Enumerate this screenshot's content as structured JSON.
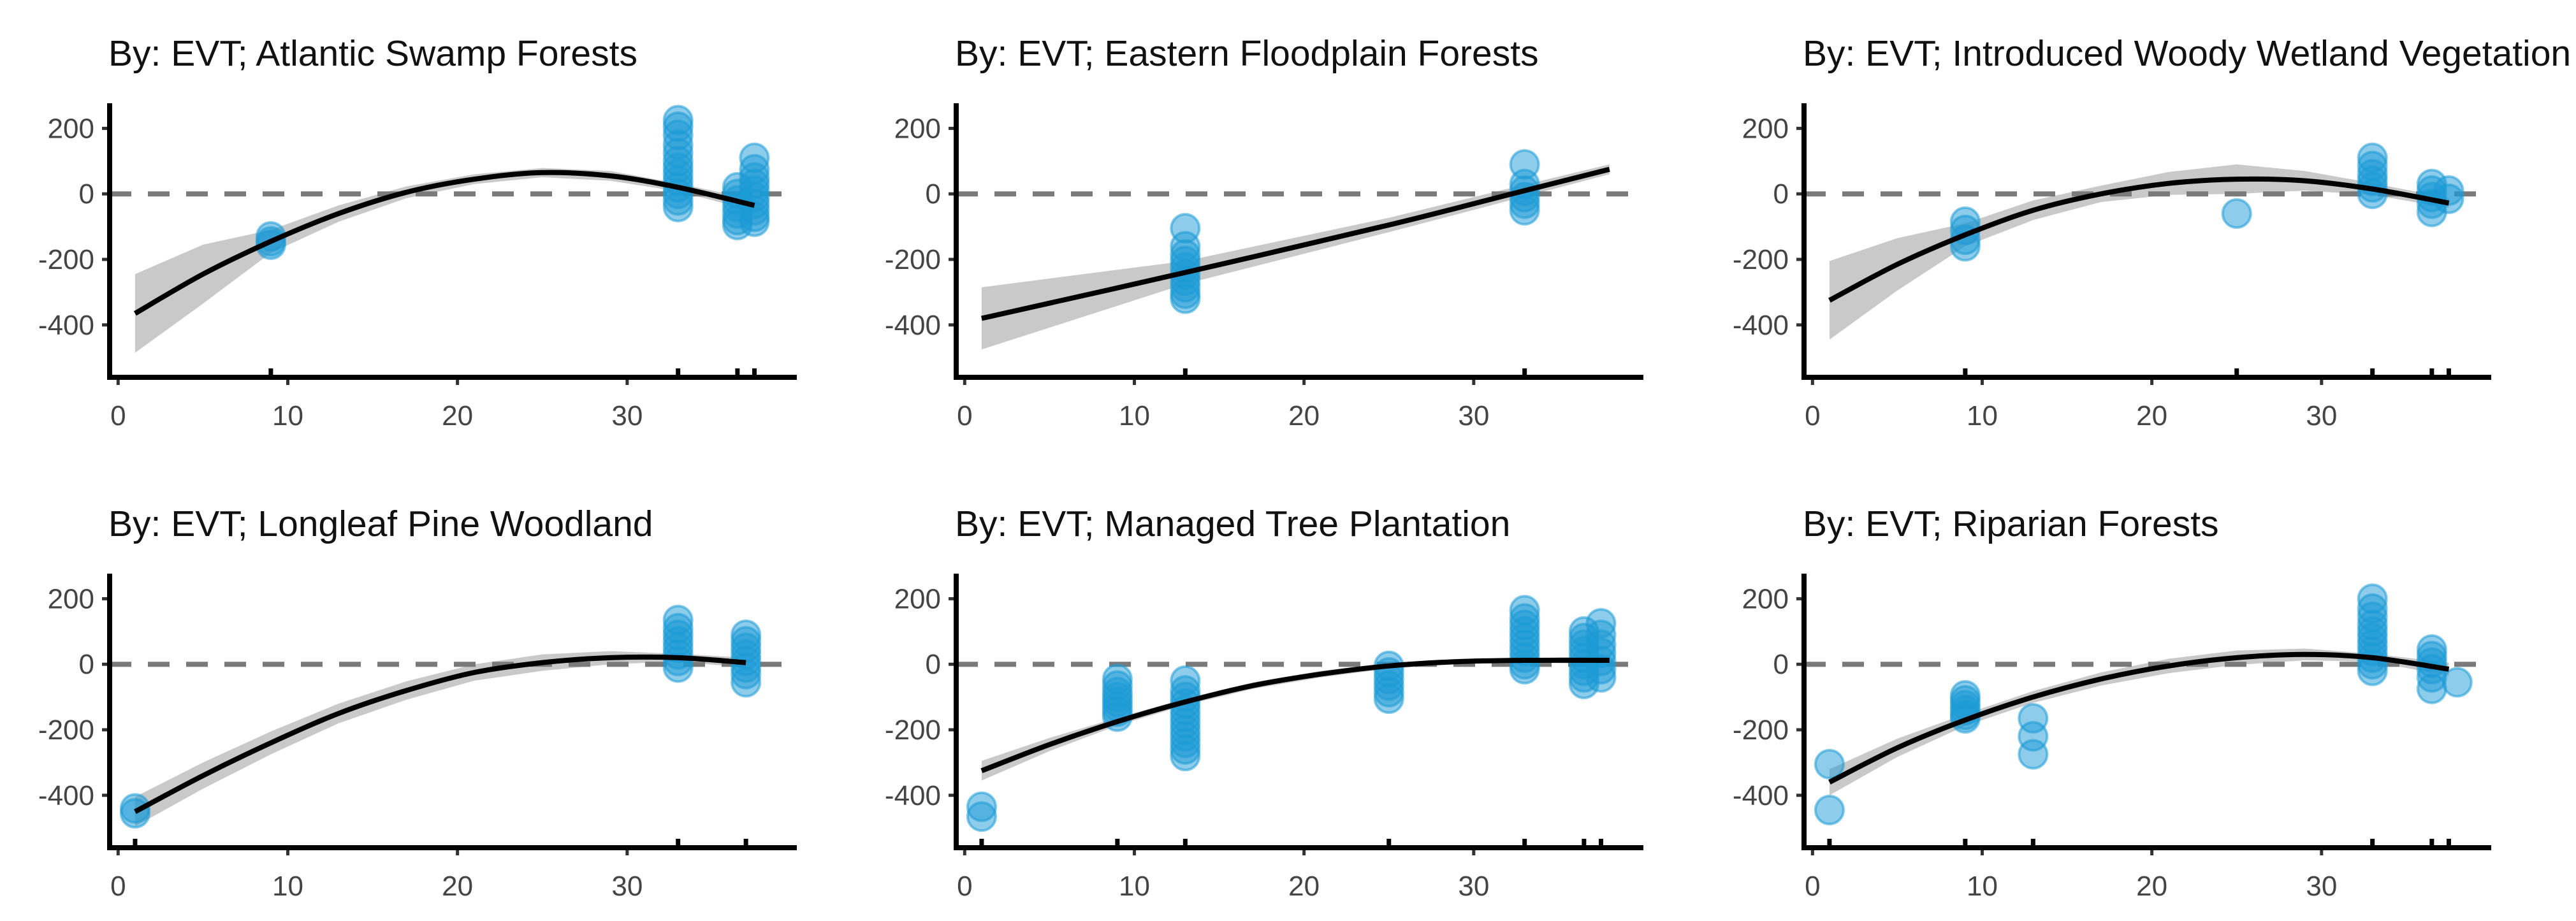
{
  "figure": {
    "point_color": "#1b9ad6",
    "line_color": "#000000",
    "band_color": "#c9c9c9",
    "ref_line_color": "#7a7a7a"
  },
  "chart_data": [
    {
      "type": "scatter",
      "title": "By: EVT; Atlantic Swamp Forests",
      "xlim": [
        -0.5,
        40
      ],
      "ylim": [
        -560,
        265
      ],
      "xticks": [
        0,
        10,
        20,
        30
      ],
      "yticks": [
        200,
        0,
        -200,
        -400
      ],
      "ref_y": 0,
      "points": [
        [
          9,
          -130
        ],
        [
          9,
          -145
        ],
        [
          9,
          -155
        ],
        [
          33,
          225
        ],
        [
          33,
          205
        ],
        [
          33,
          180
        ],
        [
          33,
          150
        ],
        [
          33,
          125
        ],
        [
          33,
          100
        ],
        [
          33,
          80
        ],
        [
          33,
          60
        ],
        [
          33,
          40
        ],
        [
          33,
          20
        ],
        [
          33,
          0
        ],
        [
          33,
          -20
        ],
        [
          33,
          -40
        ],
        [
          36.5,
          20
        ],
        [
          36.5,
          0
        ],
        [
          36.5,
          -20
        ],
        [
          36.5,
          -40
        ],
        [
          36.5,
          -60
        ],
        [
          36.5,
          -80
        ],
        [
          36.5,
          -95
        ],
        [
          37.5,
          110
        ],
        [
          37.5,
          75
        ],
        [
          37.5,
          50
        ],
        [
          37.5,
          30
        ],
        [
          37.5,
          10
        ],
        [
          37.5,
          -10
        ],
        [
          37.5,
          -30
        ],
        [
          37.5,
          -50
        ],
        [
          37.5,
          -70
        ],
        [
          37.5,
          -85
        ]
      ],
      "fit": {
        "x": [
          1,
          5,
          9,
          13,
          17,
          21,
          25,
          29,
          33,
          37.5
        ],
        "y": [
          -365,
          -245,
          -145,
          -60,
          5,
          45,
          65,
          55,
          20,
          -35
        ],
        "ci_halfwidth": [
          120,
          90,
          35,
          25,
          18,
          15,
          14,
          15,
          12,
          18
        ]
      },
      "rug": [
        9,
        33,
        36.5,
        37.5
      ]
    },
    {
      "type": "scatter",
      "title": "By: EVT; Eastern Floodplain Forests",
      "xlim": [
        -0.5,
        40
      ],
      "ylim": [
        -560,
        265
      ],
      "xticks": [
        0,
        10,
        20,
        30
      ],
      "yticks": [
        200,
        0,
        -200,
        -400
      ],
      "ref_y": 0,
      "points": [
        [
          13,
          -105
        ],
        [
          13,
          -160
        ],
        [
          13,
          -185
        ],
        [
          13,
          -205
        ],
        [
          13,
          -225
        ],
        [
          13,
          -245
        ],
        [
          13,
          -265
        ],
        [
          13,
          -285
        ],
        [
          13,
          -305
        ],
        [
          13,
          -320
        ],
        [
          33,
          90
        ],
        [
          33,
          30
        ],
        [
          33,
          10
        ],
        [
          33,
          -10
        ],
        [
          33,
          -30
        ],
        [
          33,
          -50
        ]
      ],
      "fit": {
        "x": [
          1,
          13,
          25,
          33,
          38
        ],
        "y": [
          -380,
          -240,
          -95,
          10,
          75
        ],
        "ci_halfwidth": [
          95,
          35,
          22,
          18,
          15
        ]
      },
      "rug": [
        13,
        33
      ]
    },
    {
      "type": "scatter",
      "title": "By: EVT; Introduced Woody Wetland Vegetation",
      "xlim": [
        -0.5,
        40
      ],
      "ylim": [
        -560,
        265
      ],
      "xticks": [
        0,
        10,
        20,
        30
      ],
      "yticks": [
        200,
        0,
        -200,
        -400
      ],
      "ref_y": 0,
      "points": [
        [
          9,
          -85
        ],
        [
          9,
          -110
        ],
        [
          9,
          -140
        ],
        [
          9,
          -160
        ],
        [
          25,
          -60
        ],
        [
          33,
          110
        ],
        [
          33,
          85
        ],
        [
          33,
          60
        ],
        [
          33,
          40
        ],
        [
          33,
          20
        ],
        [
          33,
          0
        ],
        [
          36.5,
          30
        ],
        [
          36.5,
          10
        ],
        [
          36.5,
          -10
        ],
        [
          36.5,
          -30
        ],
        [
          36.5,
          -55
        ],
        [
          37.5,
          10
        ],
        [
          37.5,
          -15
        ]
      ],
      "fit": {
        "x": [
          1,
          5,
          9,
          13,
          17,
          21,
          25,
          29,
          33,
          37.5
        ],
        "y": [
          -325,
          -215,
          -125,
          -50,
          0,
          32,
          45,
          40,
          15,
          -28
        ],
        "ci_halfwidth": [
          120,
          80,
          35,
          30,
          25,
          35,
          45,
          30,
          18,
          15
        ]
      },
      "rug": [
        9,
        25,
        33,
        36.5,
        37.5
      ]
    },
    {
      "type": "scatter",
      "title": "By: EVT; Longleaf Pine Woodland",
      "xlim": [
        -0.5,
        40
      ],
      "ylim": [
        -560,
        265
      ],
      "xticks": [
        0,
        10,
        20,
        30
      ],
      "yticks": [
        200,
        0,
        -200,
        -400
      ],
      "ref_y": 0,
      "points": [
        [
          1,
          -440
        ],
        [
          1,
          -455
        ],
        [
          33,
          135
        ],
        [
          33,
          110
        ],
        [
          33,
          90
        ],
        [
          33,
          70
        ],
        [
          33,
          50
        ],
        [
          33,
          30
        ],
        [
          33,
          10
        ],
        [
          33,
          -10
        ],
        [
          37,
          90
        ],
        [
          37,
          70
        ],
        [
          37,
          50
        ],
        [
          37,
          30
        ],
        [
          37,
          10
        ],
        [
          37,
          -10
        ],
        [
          37,
          -30
        ],
        [
          37,
          -55
        ]
      ],
      "fit": {
        "x": [
          1,
          5,
          9,
          13,
          17,
          21,
          25,
          29,
          33,
          37
        ],
        "y": [
          -450,
          -340,
          -240,
          -150,
          -80,
          -25,
          5,
          20,
          20,
          5
        ],
        "ci_halfwidth": [
          45,
          40,
          35,
          30,
          28,
          25,
          25,
          20,
          12,
          15
        ]
      },
      "rug": [
        1,
        33,
        37
      ]
    },
    {
      "type": "scatter",
      "title": "By: EVT; Managed Tree Plantation",
      "xlim": [
        -0.5,
        40
      ],
      "ylim": [
        -560,
        265
      ],
      "xticks": [
        0,
        10,
        20,
        30
      ],
      "yticks": [
        200,
        0,
        -200,
        -400
      ],
      "ref_y": 0,
      "points": [
        [
          1,
          -435
        ],
        [
          1,
          -465
        ],
        [
          9,
          -45
        ],
        [
          9,
          -65
        ],
        [
          9,
          -85
        ],
        [
          9,
          -100
        ],
        [
          9,
          -115
        ],
        [
          9,
          -130
        ],
        [
          9,
          -145
        ],
        [
          9,
          -160
        ],
        [
          13,
          -50
        ],
        [
          13,
          -80
        ],
        [
          13,
          -100
        ],
        [
          13,
          -120
        ],
        [
          13,
          -140
        ],
        [
          13,
          -160
        ],
        [
          13,
          -180
        ],
        [
          13,
          -200
        ],
        [
          13,
          -220
        ],
        [
          13,
          -240
        ],
        [
          13,
          -260
        ],
        [
          13,
          -280
        ],
        [
          25,
          -5
        ],
        [
          25,
          -25
        ],
        [
          25,
          -45
        ],
        [
          25,
          -65
        ],
        [
          25,
          -85
        ],
        [
          25,
          -105
        ],
        [
          33,
          165
        ],
        [
          33,
          140
        ],
        [
          33,
          120
        ],
        [
          33,
          100
        ],
        [
          33,
          80
        ],
        [
          33,
          60
        ],
        [
          33,
          40
        ],
        [
          33,
          20
        ],
        [
          33,
          0
        ],
        [
          33,
          -15
        ],
        [
          36.5,
          100
        ],
        [
          36.5,
          80
        ],
        [
          36.5,
          60
        ],
        [
          36.5,
          40
        ],
        [
          36.5,
          20
        ],
        [
          36.5,
          0
        ],
        [
          36.5,
          -20
        ],
        [
          36.5,
          -40
        ],
        [
          36.5,
          -60
        ],
        [
          37.5,
          125
        ],
        [
          37.5,
          90
        ],
        [
          37.5,
          60
        ],
        [
          37.5,
          35
        ],
        [
          37.5,
          10
        ],
        [
          37.5,
          -15
        ],
        [
          37.5,
          -40
        ]
      ],
      "fit": {
        "x": [
          1,
          5,
          9,
          13,
          17,
          21,
          25,
          29,
          33,
          38
        ],
        "y": [
          -325,
          -245,
          -175,
          -115,
          -65,
          -30,
          -5,
          8,
          12,
          12
        ],
        "ci_halfwidth": [
          30,
          20,
          12,
          10,
          10,
          10,
          8,
          8,
          6,
          12
        ]
      },
      "rug": [
        1,
        9,
        13,
        25,
        33,
        36.5,
        37.5
      ]
    },
    {
      "type": "scatter",
      "title": "By: EVT; Riparian Forests",
      "xlim": [
        -0.5,
        40
      ],
      "ylim": [
        -560,
        265
      ],
      "xticks": [
        0,
        10,
        20,
        30
      ],
      "yticks": [
        200,
        0,
        -200,
        -400
      ],
      "ref_y": 0,
      "points": [
        [
          1,
          -305
        ],
        [
          1,
          -445
        ],
        [
          9,
          -95
        ],
        [
          9,
          -110
        ],
        [
          9,
          -125
        ],
        [
          9,
          -140
        ],
        [
          9,
          -155
        ],
        [
          9,
          -165
        ],
        [
          13,
          -165
        ],
        [
          13,
          -220
        ],
        [
          13,
          -275
        ],
        [
          33,
          200
        ],
        [
          33,
          170
        ],
        [
          33,
          145
        ],
        [
          33,
          120
        ],
        [
          33,
          100
        ],
        [
          33,
          80
        ],
        [
          33,
          60
        ],
        [
          33,
          40
        ],
        [
          33,
          20
        ],
        [
          33,
          0
        ],
        [
          33,
          -20
        ],
        [
          36.5,
          45
        ],
        [
          36.5,
          25
        ],
        [
          36.5,
          5
        ],
        [
          36.5,
          -15
        ],
        [
          36.5,
          -40
        ],
        [
          36.5,
          -75
        ],
        [
          38,
          -55
        ]
      ],
      "fit": {
        "x": [
          1,
          5,
          9,
          13,
          17,
          21,
          25,
          29,
          33,
          37.5
        ],
        "y": [
          -360,
          -255,
          -170,
          -100,
          -45,
          -5,
          20,
          30,
          20,
          -15
        ],
        "ci_halfwidth": [
          40,
          28,
          18,
          18,
          20,
          22,
          22,
          18,
          12,
          20
        ]
      },
      "rug": [
        1,
        9,
        13,
        33,
        36.5,
        37.5
      ]
    }
  ]
}
